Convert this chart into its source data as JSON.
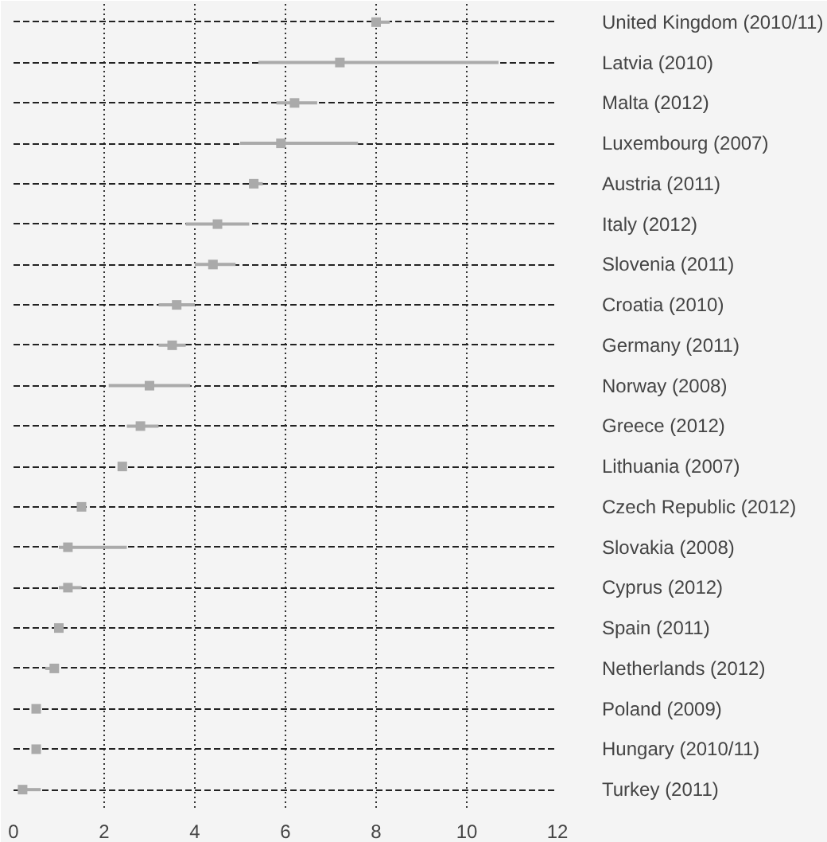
{
  "chart_data": {
    "type": "scatter",
    "orientation": "horizontal",
    "categories": [
      "United Kingdom (2010/11)",
      "Latvia (2010)",
      "Malta (2012)",
      "Luxembourg (2007)",
      "Austria (2011)",
      "Italy (2012)",
      "Slovenia (2011)",
      "Croatia (2010)",
      "Germany (2011)",
      "Norway (2008)",
      "Greece (2012)",
      "Lithuania (2007)",
      "Czech Republic (2012)",
      "Slovakia (2008)",
      "Cyprus (2012)",
      "Spain (2011)",
      "Netherlands (2012)",
      "Poland (2009)",
      "Hungary (2010/11)",
      "Turkey (2011)"
    ],
    "series": [
      {
        "color": "#aaaaaa",
        "values": [
          8.0,
          7.2,
          6.2,
          5.9,
          5.3,
          4.5,
          4.4,
          3.6,
          3.5,
          3.0,
          2.8,
          2.4,
          1.5,
          1.2,
          1.2,
          1.0,
          0.9,
          0.5,
          0.5,
          0.2
        ],
        "errors": [
          [
            7.9,
            8.3
          ],
          [
            5.4,
            10.7
          ],
          [
            5.8,
            6.7
          ],
          [
            5.0,
            7.6
          ],
          [
            5.2,
            5.5
          ],
          [
            3.8,
            5.2
          ],
          [
            4.0,
            4.9
          ],
          [
            3.2,
            4.0
          ],
          [
            3.2,
            3.8
          ],
          [
            2.1,
            3.9
          ],
          [
            2.5,
            3.2
          ],
          null,
          null,
          [
            1.0,
            2.5
          ],
          [
            1.0,
            1.5
          ],
          null,
          [
            0.7,
            1.0
          ],
          null,
          null,
          [
            0.1,
            0.6
          ]
        ]
      }
    ],
    "marker": "square",
    "xlim": [
      0,
      12
    ],
    "xticks": [
      0,
      2,
      4,
      6,
      8,
      10,
      12
    ],
    "grid": true
  }
}
